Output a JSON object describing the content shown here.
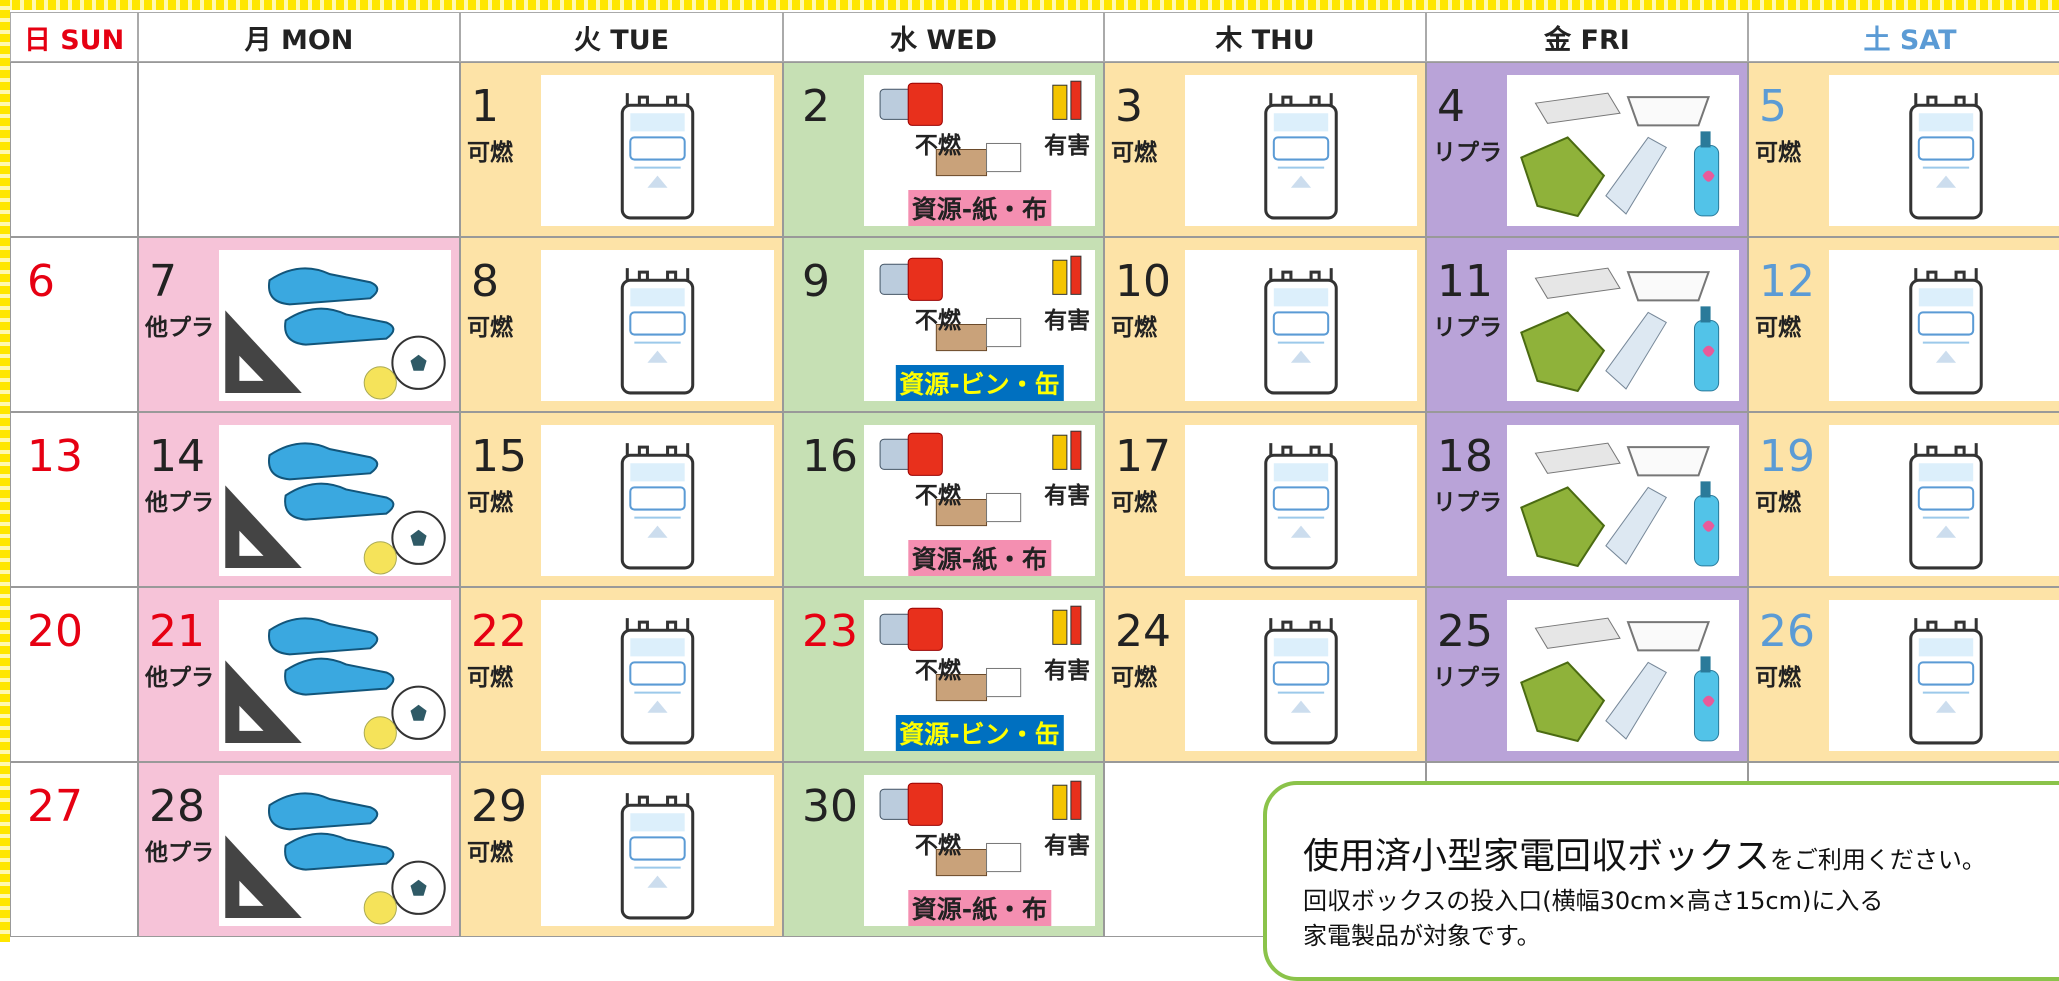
{
  "weekdays": [
    {
      "text": "日 SUN",
      "color": "#e60012"
    },
    {
      "text": "月 MON",
      "color": "#222222"
    },
    {
      "text": "火 TUE",
      "color": "#222222"
    },
    {
      "text": "水 WED",
      "color": "#222222"
    },
    {
      "text": "木 THU",
      "color": "#222222"
    },
    {
      "text": "金 FRI",
      "color": "#222222"
    },
    {
      "text": "土 SAT",
      "color": "#5b9bd5"
    }
  ],
  "weeks": [
    [
      null,
      null,
      {
        "day": 1,
        "label": "可燃",
        "bg": "#fde3a7"
      },
      {
        "day": 2,
        "items": [
          "不燃",
          "有害"
        ],
        "resource": "資源-紙・布",
        "resource_bg": "#f48fb1",
        "resource_color": "#222222",
        "bg": "#c6e0b4"
      },
      {
        "day": 3,
        "label": "可燃",
        "bg": "#fde3a7"
      },
      {
        "day": 4,
        "label": "リプラ",
        "bg": "#b9a3d8"
      },
      {
        "day": 5,
        "label": "可燃",
        "bg": "#fde3a7",
        "day_color": "#5b9bd5"
      }
    ],
    [
      {
        "day": 6,
        "day_color": "#e60012"
      },
      {
        "day": 7,
        "label": "他プラ",
        "bg": "#f6c3d8"
      },
      {
        "day": 8,
        "label": "可燃",
        "bg": "#fde3a7"
      },
      {
        "day": 9,
        "items": [
          "不燃",
          "有害"
        ],
        "resource": "資源-ビン・缶",
        "resource_bg": "#0070c0",
        "resource_color": "#ffff00",
        "bg": "#c6e0b4"
      },
      {
        "day": 10,
        "label": "可燃",
        "bg": "#fde3a7"
      },
      {
        "day": 11,
        "label": "リプラ",
        "bg": "#b9a3d8"
      },
      {
        "day": 12,
        "label": "可燃",
        "bg": "#fde3a7",
        "day_color": "#5b9bd5"
      }
    ],
    [
      {
        "day": 13,
        "day_color": "#e60012"
      },
      {
        "day": 14,
        "label": "他プラ",
        "bg": "#f6c3d8"
      },
      {
        "day": 15,
        "label": "可燃",
        "bg": "#fde3a7"
      },
      {
        "day": 16,
        "items": [
          "不燃",
          "有害"
        ],
        "resource": "資源-紙・布",
        "resource_bg": "#f48fb1",
        "resource_color": "#222222",
        "bg": "#c6e0b4"
      },
      {
        "day": 17,
        "label": "可燃",
        "bg": "#fde3a7"
      },
      {
        "day": 18,
        "label": "リプラ",
        "bg": "#b9a3d8"
      },
      {
        "day": 19,
        "label": "可燃",
        "bg": "#fde3a7",
        "day_color": "#5b9bd5"
      }
    ],
    [
      {
        "day": 20,
        "day_color": "#e60012"
      },
      {
        "day": 21,
        "label": "他プラ",
        "bg": "#f6c3d8",
        "day_color": "#e60012"
      },
      {
        "day": 22,
        "label": "可燃",
        "bg": "#fde3a7",
        "day_color": "#e60012"
      },
      {
        "day": 23,
        "items": [
          "不燃",
          "有害"
        ],
        "resource": "資源-ビン・缶",
        "resource_bg": "#0070c0",
        "resource_color": "#ffff00",
        "bg": "#c6e0b4",
        "day_color": "#e60012"
      },
      {
        "day": 24,
        "label": "可燃",
        "bg": "#fde3a7"
      },
      {
        "day": 25,
        "label": "リプラ",
        "bg": "#b9a3d8"
      },
      {
        "day": 26,
        "label": "可燃",
        "bg": "#fde3a7",
        "day_color": "#5b9bd5"
      }
    ],
    [
      {
        "day": 27,
        "day_color": "#e60012"
      },
      {
        "day": 28,
        "label": "他プラ",
        "bg": "#f6c3d8"
      },
      {
        "day": 29,
        "label": "可燃",
        "bg": "#fde3a7"
      },
      {
        "day": 30,
        "items": [
          "不燃",
          "有害"
        ],
        "resource": "資源-紙・布",
        "resource_bg": "#f48fb1",
        "resource_color": "#222222",
        "bg": "#c6e0b4"
      },
      null,
      null,
      null
    ]
  ],
  "note": {
    "title": "使用済小型家電回収ボックス",
    "title_suffix": "をご利用ください。",
    "lines": [
      "回収ボックスの投入口(横幅30cm×高さ15cm)に入る",
      "家電製品が対象です。"
    ]
  }
}
